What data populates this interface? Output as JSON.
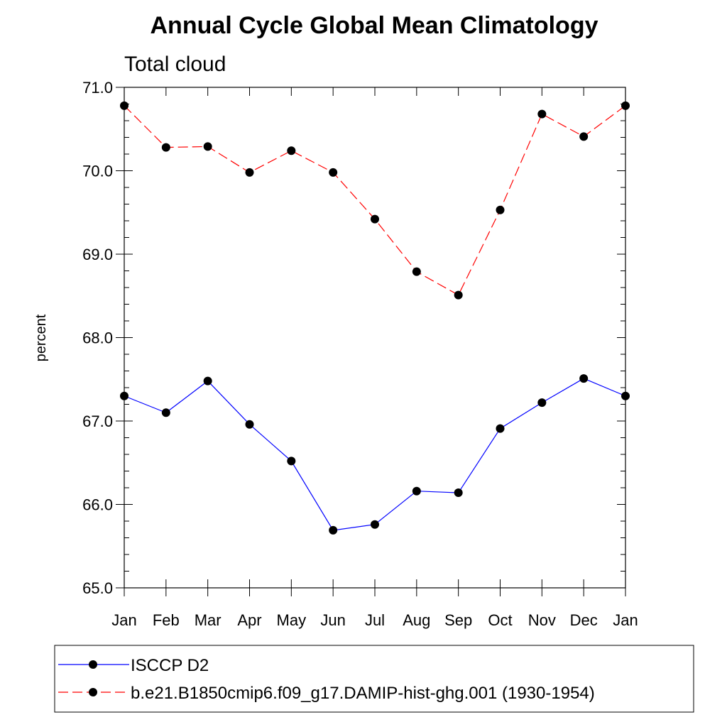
{
  "chart_data": {
    "type": "line",
    "title": "Annual Cycle Global Mean Climatology",
    "subtitle": "Total cloud",
    "ylabel": "percent",
    "xlabel": "",
    "categories": [
      "Jan",
      "Feb",
      "Mar",
      "Apr",
      "May",
      "Jun",
      "Jul",
      "Aug",
      "Sep",
      "Oct",
      "Nov",
      "Dec",
      "Jan"
    ],
    "ylim": [
      65.0,
      71.0
    ],
    "yticks": [
      "65.0",
      "66.0",
      "67.0",
      "68.0",
      "69.0",
      "70.0",
      "71.0"
    ],
    "grid": false,
    "legend_position": "bottom",
    "series": [
      {
        "name": "ISCCP D2",
        "color": "#0000ff",
        "line_style": "solid",
        "marker": "filled-circle",
        "values": [
          67.3,
          67.1,
          67.48,
          66.96,
          66.52,
          65.69,
          65.76,
          66.16,
          66.14,
          66.91,
          67.22,
          67.51,
          67.3
        ]
      },
      {
        "name": "b.e21.B1850cmip6.f09_g17.DAMIP-hist-ghg.001 (1930-1954)",
        "color": "#ff0000",
        "line_style": "dashed",
        "marker": "filled-circle",
        "values": [
          70.78,
          70.28,
          70.29,
          69.98,
          70.24,
          69.98,
          69.42,
          68.79,
          68.51,
          69.53,
          70.68,
          70.41,
          70.78
        ]
      }
    ]
  }
}
